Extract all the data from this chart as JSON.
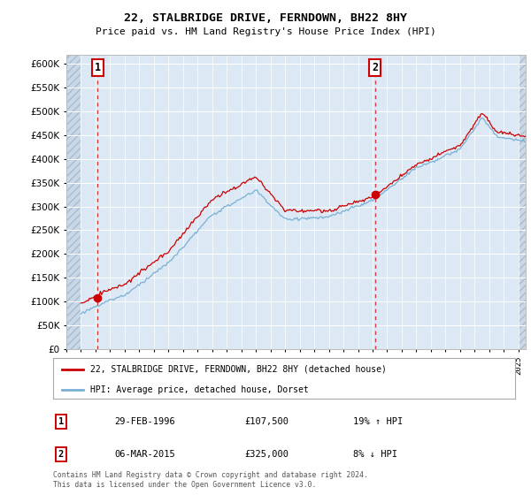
{
  "title": "22, STALBRIDGE DRIVE, FERNDOWN, BH22 8HY",
  "subtitle": "Price paid vs. HM Land Registry's House Price Index (HPI)",
  "legend_label_red": "22, STALBRIDGE DRIVE, FERNDOWN, BH22 8HY (detached house)",
  "legend_label_blue": "HPI: Average price, detached house, Dorset",
  "transaction1": {
    "label": "1",
    "date": "29-FEB-1996",
    "price": "£107,500",
    "hpi_note": "19% ↑ HPI"
  },
  "transaction2": {
    "label": "2",
    "date": "06-MAR-2015",
    "price": "£325,000",
    "hpi_note": "8% ↓ HPI"
  },
  "footer": "Contains HM Land Registry data © Crown copyright and database right 2024.\nThis data is licensed under the Open Government Licence v3.0.",
  "ylim": [
    0,
    620000
  ],
  "yticks": [
    0,
    50000,
    100000,
    150000,
    200000,
    250000,
    300000,
    350000,
    400000,
    450000,
    500000,
    550000,
    600000
  ],
  "background_color": "#dce9f5",
  "grid_color": "#ffffff",
  "red_color": "#cc0000",
  "blue_color": "#7ab0d4",
  "marker1_x": 1996.15,
  "marker1_y": 107500,
  "marker2_x": 2015.18,
  "marker2_y": 325000,
  "vline1_x": 1996.15,
  "vline2_x": 2015.18,
  "xmin": 1994.0,
  "xmax": 2025.5
}
